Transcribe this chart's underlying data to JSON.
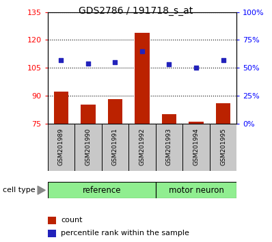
{
  "title": "GDS2786 / 191718_s_at",
  "samples": [
    "GSM201989",
    "GSM201990",
    "GSM201991",
    "GSM201992",
    "GSM201993",
    "GSM201994",
    "GSM201995"
  ],
  "counts": [
    92,
    85,
    88,
    124,
    80,
    76,
    86
  ],
  "percentile_ranks": [
    57,
    54,
    55,
    65,
    53,
    50,
    57
  ],
  "ylim_left": [
    75,
    135
  ],
  "ylim_right": [
    0,
    100
  ],
  "left_ticks": [
    75,
    90,
    105,
    120,
    135
  ],
  "right_ticks": [
    0,
    25,
    50,
    75,
    100
  ],
  "right_tick_labels": [
    "0%",
    "25%",
    "50%",
    "75%",
    "100%"
  ],
  "bar_color": "#BB2200",
  "dot_color": "#2222BB",
  "bar_width": 0.55,
  "cell_type_label": "cell type",
  "legend_count_label": "count",
  "legend_pct_label": "percentile rank within the sample",
  "reference_label": "reference",
  "motor_neuron_label": "motor neuron",
  "ref_color": "#90EE90",
  "gray_color": "#C8C8C8",
  "n_ref": 4,
  "n_motor": 3
}
